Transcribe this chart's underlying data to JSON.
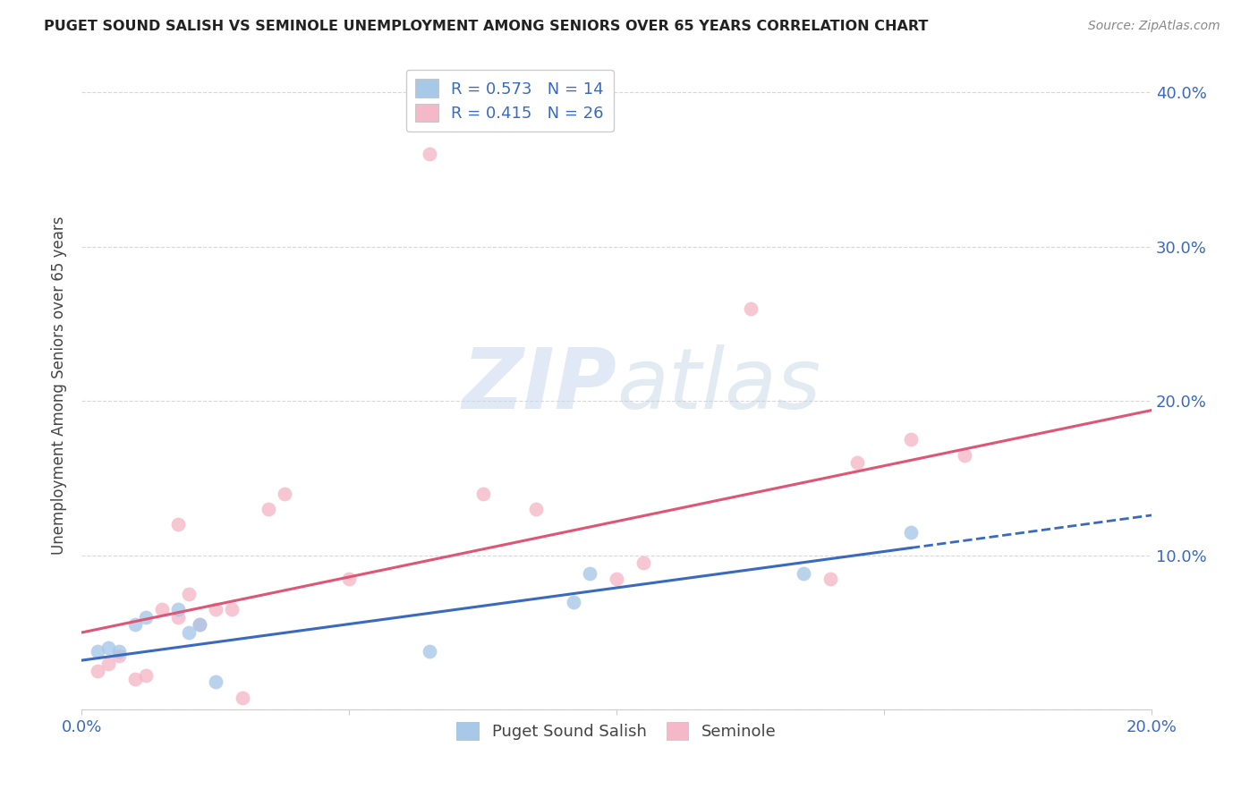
{
  "title": "PUGET SOUND SALISH VS SEMINOLE UNEMPLOYMENT AMONG SENIORS OVER 65 YEARS CORRELATION CHART",
  "source": "Source: ZipAtlas.com",
  "ylabel": "Unemployment Among Seniors over 65 years",
  "xlim": [
    0.0,
    0.2
  ],
  "ylim": [
    0.0,
    0.42
  ],
  "blue_scatter_x": [
    0.003,
    0.005,
    0.007,
    0.01,
    0.012,
    0.018,
    0.02,
    0.022,
    0.025,
    0.065,
    0.092,
    0.095,
    0.135,
    0.155
  ],
  "blue_scatter_y": [
    0.038,
    0.04,
    0.038,
    0.055,
    0.06,
    0.065,
    0.05,
    0.055,
    0.018,
    0.038,
    0.07,
    0.088,
    0.088,
    0.115
  ],
  "pink_scatter_x": [
    0.003,
    0.005,
    0.007,
    0.01,
    0.012,
    0.015,
    0.018,
    0.018,
    0.02,
    0.022,
    0.025,
    0.028,
    0.03,
    0.035,
    0.038,
    0.05,
    0.065,
    0.075,
    0.085,
    0.1,
    0.105,
    0.125,
    0.14,
    0.145,
    0.155,
    0.165
  ],
  "pink_scatter_y": [
    0.025,
    0.03,
    0.035,
    0.02,
    0.022,
    0.065,
    0.06,
    0.12,
    0.075,
    0.055,
    0.065,
    0.065,
    0.008,
    0.13,
    0.14,
    0.085,
    0.36,
    0.14,
    0.13,
    0.085,
    0.095,
    0.26,
    0.085,
    0.16,
    0.175,
    0.165
  ],
  "blue_line_x0": 0.0,
  "blue_line_x1": 0.155,
  "blue_line_x_dash0": 0.155,
  "blue_line_x_dash1": 0.2,
  "blue_line_y_intercept": 0.032,
  "blue_line_slope": 0.47,
  "pink_line_x0": 0.0,
  "pink_line_x1": 0.2,
  "pink_line_y_intercept": 0.05,
  "pink_line_slope": 0.72,
  "blue_scatter_color": "#a8c8e8",
  "pink_scatter_color": "#f5b8c8",
  "blue_line_color": "#3a6abf",
  "pink_line_color": "#e05575",
  "watermark_zip": "ZIP",
  "watermark_atlas": "atlas",
  "background_color": "#ffffff",
  "grid_color": "#d8d8d8",
  "legend_label_1": "Puget Sound Salish",
  "legend_label_2": "Seminole",
  "legend_r1": "R = 0.573",
  "legend_n1": "N = 14",
  "legend_r2": "R = 0.415",
  "legend_n2": "N = 26"
}
